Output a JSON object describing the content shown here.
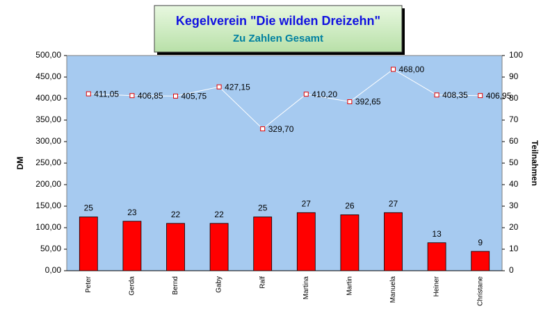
{
  "chart_data": {
    "type": "bar",
    "title": "Kegelverein \"Die wilden Dreizehn\"",
    "subtitle": "Zu Zahlen Gesamt",
    "y_label": "DM",
    "y2_label": "Teilnahmen",
    "categories": [
      "Peter",
      "Gerda",
      "Bernd",
      "Gaby",
      "Ralf",
      "Martina",
      "Martin",
      "Manuela",
      "Heiner",
      "Christane"
    ],
    "series": [
      {
        "type": "bar",
        "axis": "y2",
        "color": "#ff0000",
        "values": [
          25,
          23,
          22,
          22,
          25,
          27,
          26,
          27,
          13,
          9
        ]
      },
      {
        "type": "line",
        "axis": "y",
        "color": "#ffffff",
        "marker_color": "#e00000",
        "values": [
          411.05,
          406.85,
          405.75,
          427.15,
          329.7,
          410.2,
          392.65,
          468.0,
          408.35,
          406.95
        ],
        "value_labels": [
          "411,05",
          "406,85",
          "405,75",
          "427,15",
          "329,70",
          "410,20",
          "392,65",
          "468,00",
          "408,35",
          "406,95"
        ]
      }
    ],
    "ylim": [
      0,
      500
    ],
    "yticks": [
      {
        "value": 0,
        "label": "0,00"
      },
      {
        "value": 50,
        "label": "50,00"
      },
      {
        "value": 100,
        "label": "100,00"
      },
      {
        "value": 150,
        "label": "150,00"
      },
      {
        "value": 200,
        "label": "200,00"
      },
      {
        "value": 250,
        "label": "250,00"
      },
      {
        "value": 300,
        "label": "300,00"
      },
      {
        "value": 350,
        "label": "350,00"
      },
      {
        "value": 400,
        "label": "400,00"
      },
      {
        "value": 450,
        "label": "450,00"
      },
      {
        "value": 500,
        "label": "500,00"
      }
    ],
    "y2lim": [
      0,
      100
    ],
    "y2ticks": [
      0,
      10,
      20,
      30,
      40,
      50,
      60,
      70,
      80,
      90,
      100
    ],
    "plot_background": "#a6caf0"
  }
}
